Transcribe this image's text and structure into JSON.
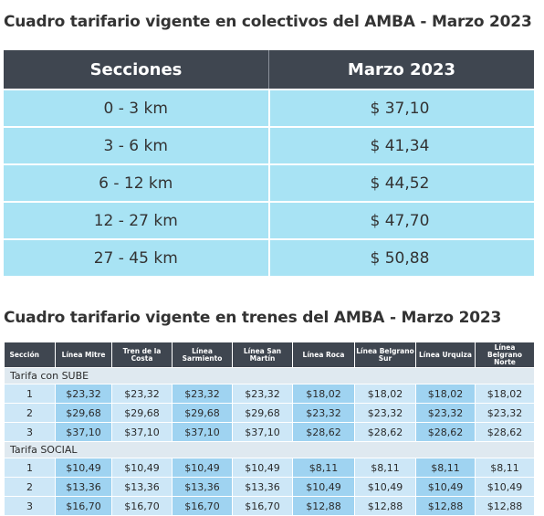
{
  "title1": "Cuadro tarifario vigente en colectivos del AMBA - Marzo 2023",
  "table1": {
    "header": [
      "Secciones",
      "Marzo 2023"
    ],
    "rows": [
      [
        "0 - 3 km",
        "$ 37,10"
      ],
      [
        "3 - 6 km",
        "$ 41,34"
      ],
      [
        "6 - 12 km",
        "$ 44,52"
      ],
      [
        "12 - 27 km",
        "$ 47,70"
      ],
      [
        "27 - 45  km",
        "$ 50,88"
      ]
    ]
  },
  "title2": "Cuadro tarifario vigente en trenes del AMBA - Marzo 2023",
  "table2": {
    "header": [
      "Sección",
      "Línea Mitre",
      "Tren de la Costa",
      "Línea Sarmiento",
      "Línea San Martín",
      "Línea Roca",
      "Línea Belgrano Sur",
      "Línea Urquiza",
      "Línea Belgrano Norte"
    ],
    "groups": [
      {
        "label": "Tarifa con SUBE",
        "rows": [
          [
            "1",
            "$23,32",
            "$23,32",
            "$23,32",
            "$23,32",
            "$18,02",
            "$18,02",
            "$18,02",
            "$18,02"
          ],
          [
            "2",
            "$29,68",
            "$29,68",
            "$29,68",
            "$29,68",
            "$23,32",
            "$23,32",
            "$23,32",
            "$23,32"
          ],
          [
            "3",
            "$37,10",
            "$37,10",
            "$37,10",
            "$37,10",
            "$28,62",
            "$28,62",
            "$28,62",
            "$28,62"
          ]
        ]
      },
      {
        "label": "Tarifa SOCIAL",
        "rows": [
          [
            "1",
            "$10,49",
            "$10,49",
            "$10,49",
            "$10,49",
            "$8,11",
            "$8,11",
            "$8,11",
            "$8,11"
          ],
          [
            "2",
            "$13,36",
            "$13,36",
            "$13,36",
            "$13,36",
            "$10,49",
            "$10,49",
            "$10,49",
            "$10,49"
          ],
          [
            "3",
            "$16,70",
            "$16,70",
            "$16,70",
            "$16,70",
            "$12,88",
            "$12,88",
            "$12,88",
            "$12,88"
          ]
        ]
      }
    ]
  }
}
